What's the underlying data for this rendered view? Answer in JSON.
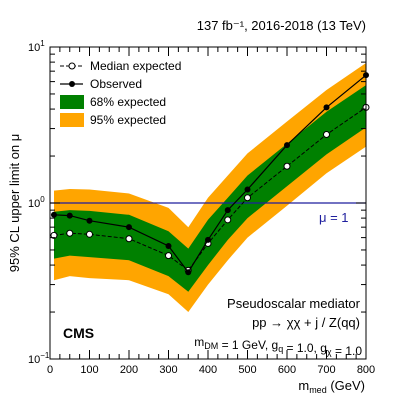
{
  "chart_data": {
    "type": "line",
    "header": "137 fb⁻¹, 2016-2018 (13 TeV)",
    "experiment": "CMS",
    "xlabel": "m",
    "xlabel_sub": "med",
    "xlabel_unit": "(GeV)",
    "ylabel": "95% CL upper limit on μ",
    "xlim": [
      0,
      800
    ],
    "ylim": [
      0.1,
      10
    ],
    "yscale": "log",
    "x_ticks": [
      0,
      100,
      200,
      300,
      400,
      500,
      600,
      700,
      800
    ],
    "y_ticks": [
      {
        "value": 0.1,
        "label": "10",
        "exp": "−1"
      },
      {
        "value": 1,
        "label": "10",
        "exp": "0"
      },
      {
        "value": 10,
        "label": "10",
        "exp": "1"
      }
    ],
    "reference_line": {
      "value": 1,
      "label": "μ = 1",
      "color": "#1f1f9e"
    },
    "legend": [
      {
        "label": "Median expected",
        "style": "dashed-open"
      },
      {
        "label": "Observed",
        "style": "solid-filled"
      },
      {
        "label": "68% expected",
        "style": "band",
        "color": "#008000"
      },
      {
        "label": "95% expected",
        "style": "band",
        "color": "#ffa500"
      }
    ],
    "annotation": {
      "line1": "Pseudoscalar mediator",
      "line2": "pp → χχ + j / Z(qq)",
      "line3": "m_DM = 1 GeV, g_q = 1.0, g_χ = 1.0"
    },
    "x": [
      10,
      50,
      100,
      200,
      300,
      350,
      400,
      450,
      500,
      600,
      700,
      800
    ],
    "series": [
      {
        "name": "Observed",
        "values": [
          0.84,
          0.83,
          0.77,
          0.7,
          0.53,
          0.36,
          0.58,
          0.9,
          1.22,
          2.35,
          4.1,
          6.6
        ]
      },
      {
        "name": "Median expected",
        "values": [
          0.62,
          0.64,
          0.63,
          0.59,
          0.46,
          0.37,
          0.55,
          0.78,
          1.08,
          1.72,
          2.75,
          4.1
        ]
      }
    ],
    "band68": {
      "lower": [
        0.44,
        0.46,
        0.45,
        0.43,
        0.34,
        0.27,
        0.4,
        0.58,
        0.8,
        1.28,
        2.05,
        3.05
      ],
      "upper": [
        0.88,
        0.9,
        0.89,
        0.84,
        0.66,
        0.51,
        0.78,
        1.08,
        1.5,
        2.4,
        3.85,
        5.7
      ]
    },
    "band95": {
      "lower": [
        0.32,
        0.34,
        0.33,
        0.32,
        0.26,
        0.2,
        0.3,
        0.43,
        0.6,
        0.96,
        1.55,
        2.3
      ],
      "upper": [
        1.2,
        1.23,
        1.22,
        1.15,
        0.93,
        0.7,
        1.08,
        1.5,
        2.08,
        3.33,
        5.3,
        7.9
      ]
    }
  }
}
